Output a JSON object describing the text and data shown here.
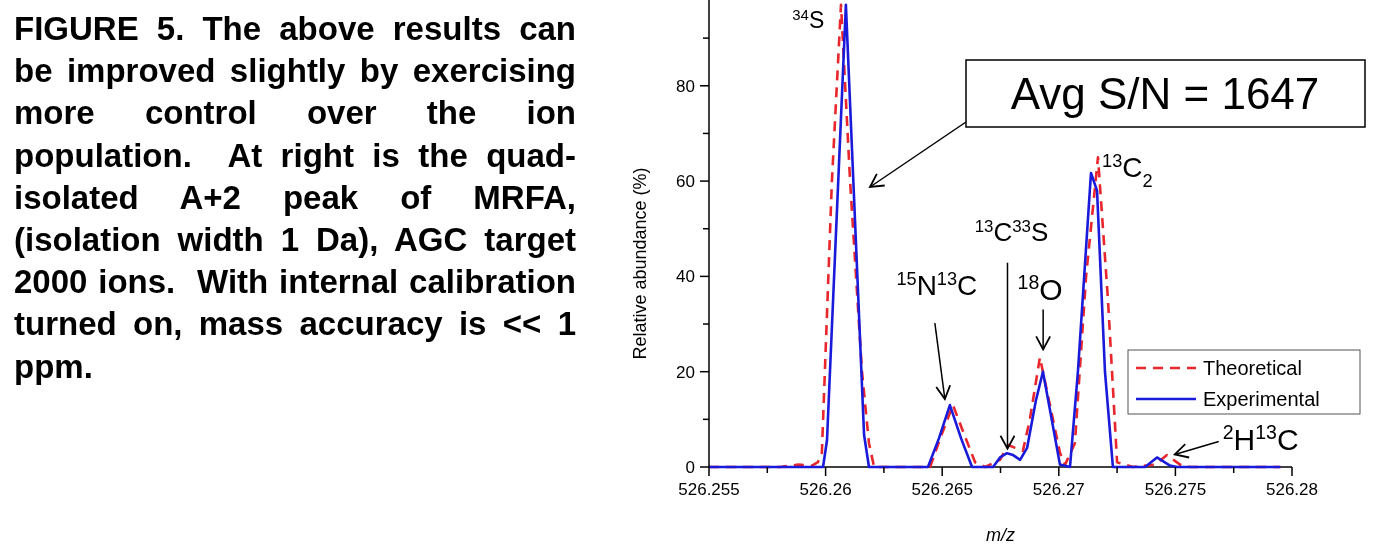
{
  "chart_data": {
    "type": "line",
    "xlabel": "m/z",
    "ylabel": "Relative abundance (%)",
    "xlim": [
      526.255,
      526.28
    ],
    "ylim": [
      0,
      98
    ],
    "xticks": [
      526.255,
      {
        "value": 526.2575,
        "label": null
      },
      526.26,
      {
        "value": 526.2625,
        "label": null
      },
      526.265,
      {
        "value": 526.2675,
        "label": null
      },
      526.27,
      {
        "value": 526.2725,
        "label": null
      },
      526.275,
      {
        "value": 526.2775,
        "label": null
      },
      526.28
    ],
    "yticks": [
      0,
      {
        "value": 10,
        "label": null
      },
      20,
      {
        "value": 30,
        "label": null
      },
      40,
      {
        "value": 50,
        "label": null
      },
      60,
      {
        "value": 70,
        "label": null
      },
      80,
      {
        "value": 90,
        "label": null
      }
    ],
    "grid": false,
    "legend": "bottom right",
    "marker": "none",
    "series": [
      {
        "name": "Theoretical",
        "color": "#e8262b",
        "line_style": "dashed",
        "x": [
          526.255,
          526.25804,
          526.25882,
          526.25942,
          526.25967,
          526.25984,
          526.26027,
          526.26066,
          526.26105,
          526.26156,
          526.26186,
          526.26208,
          526.26448,
          526.26499,
          526.26546,
          526.26593,
          526.26641,
          526.26684,
          526.26748,
          526.26782,
          526.26846,
          526.26876,
          526.26919,
          526.26962,
          526.27005,
          526.27027,
          526.27069,
          526.27117,
          526.27168,
          526.27211,
          526.2725,
          526.27318,
          526.27412,
          526.27464,
          526.2752,
          526.27563,
          526.2795
        ],
        "values": [
          0,
          0,
          0.5,
          0.3,
          1,
          3,
          60,
          97,
          60,
          20,
          5,
          0,
          0,
          7,
          13,
          7,
          1,
          0,
          1.5,
          4.6,
          3.4,
          10,
          23,
          13,
          3,
          0.5,
          5,
          40,
          65,
          35,
          1,
          0,
          0.5,
          2.5,
          0.5,
          0,
          0
        ]
      },
      {
        "name": "Experimental",
        "color": "#1a1adb",
        "line_style": "solid",
        "x": [
          526.255,
          526.25989,
          526.26006,
          526.26087,
          526.26165,
          526.26186,
          526.26439,
          526.26486,
          526.26533,
          526.26581,
          526.26628,
          526.26718,
          526.26748,
          526.26778,
          526.26804,
          526.26834,
          526.26864,
          526.26902,
          526.26932,
          526.26962,
          526.27005,
          526.27048,
          526.27082,
          526.27138,
          526.27164,
          526.27198,
          526.27232,
          526.2737,
          526.27421,
          526.27477,
          526.27507,
          526.2795
        ],
        "values": [
          0,
          0,
          5.6,
          97,
          6.7,
          0,
          0,
          6,
          13,
          6,
          0,
          0,
          2,
          2.9,
          2.5,
          1.5,
          4,
          14,
          20,
          12,
          0.5,
          0,
          20,
          61.7,
          58,
          20,
          0,
          0,
          2,
          0.3,
          0,
          0
        ]
      }
    ],
    "annotations": [
      "FIGURE 5. The above results can be improved slightly by exercising more control over the ion population.  At right is the quad-isolated A+2 peak of MRFA, (isolation width 1 Da), AGC target 2000 ions.  With internal calibration turned on, mass accuracy is << 1 ppm.",
      "Avg S/N = 1647",
      {
        "text": "$^{34}$S",
        "x": 526.2608,
        "y": 98
      },
      {
        "text": "$^{15}$N$^{13}$C",
        "x": 526.2652,
        "y": 13
      },
      {
        "text": "$^{13}$C$^{33}$S",
        "x": 526.2678,
        "y": 3
      },
      {
        "text": "$^{18}$O",
        "x": 526.2692,
        "y": 23
      },
      {
        "text": "$^{13}$C$_{2}$",
        "x": 526.2716,
        "y": 65
      },
      {
        "text": "$^{2}$H$^{13}$C",
        "x": 526.2748,
        "y": 2
      }
    ]
  }
}
